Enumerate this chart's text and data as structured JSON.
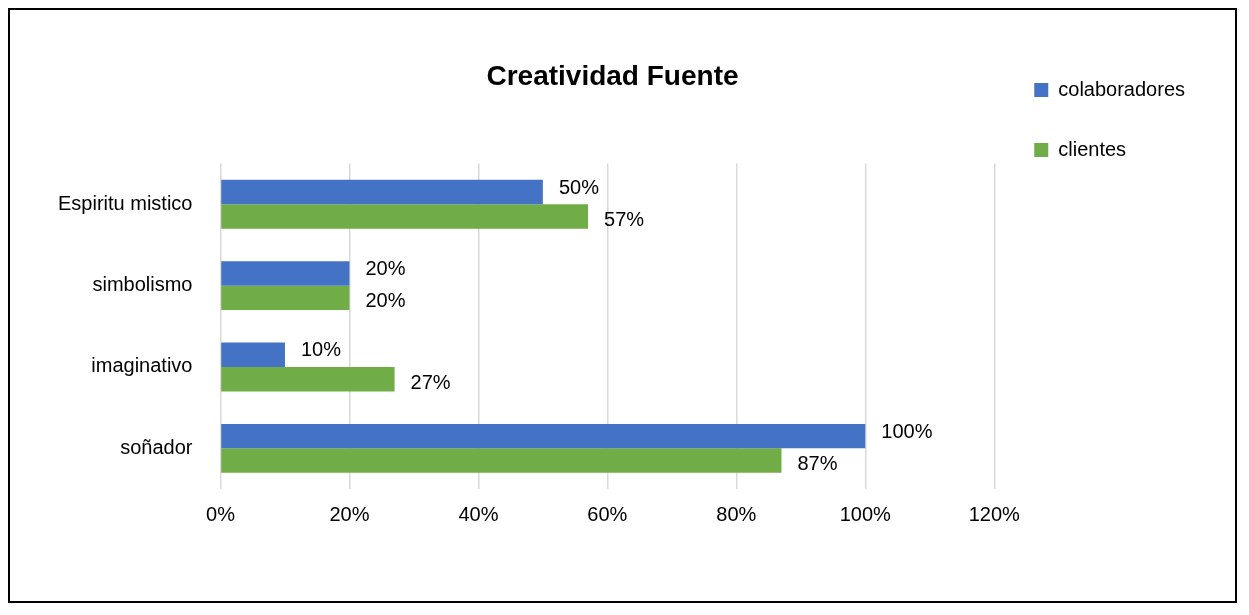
{
  "chart_data": {
    "type": "bar",
    "orientation": "horizontal",
    "title": "Creatividad Fuente",
    "categories": [
      "Espiritu mistico",
      "simbolismo",
      "imaginativo",
      "soñador"
    ],
    "series": [
      {
        "name": "colaboradores",
        "color": "#4472c4",
        "values": [
          50,
          20,
          10,
          100
        ],
        "value_labels": [
          "50%",
          "20%",
          "10%",
          "100%"
        ]
      },
      {
        "name": "clientes",
        "color": "#70ad47",
        "values": [
          57,
          20,
          27,
          87
        ],
        "value_labels": [
          "57%",
          "20%",
          "27%",
          "87%"
        ]
      }
    ],
    "xlim": [
      0,
      120
    ],
    "xticks": [
      {
        "value": 0,
        "label": "0%"
      },
      {
        "value": 20,
        "label": "20%"
      },
      {
        "value": 40,
        "label": "40%"
      },
      {
        "value": 60,
        "label": "60%"
      },
      {
        "value": 80,
        "label": "80%"
      },
      {
        "value": 100,
        "label": "100%"
      },
      {
        "value": 120,
        "label": "120%"
      }
    ],
    "grid": "x",
    "legend": "right"
  }
}
